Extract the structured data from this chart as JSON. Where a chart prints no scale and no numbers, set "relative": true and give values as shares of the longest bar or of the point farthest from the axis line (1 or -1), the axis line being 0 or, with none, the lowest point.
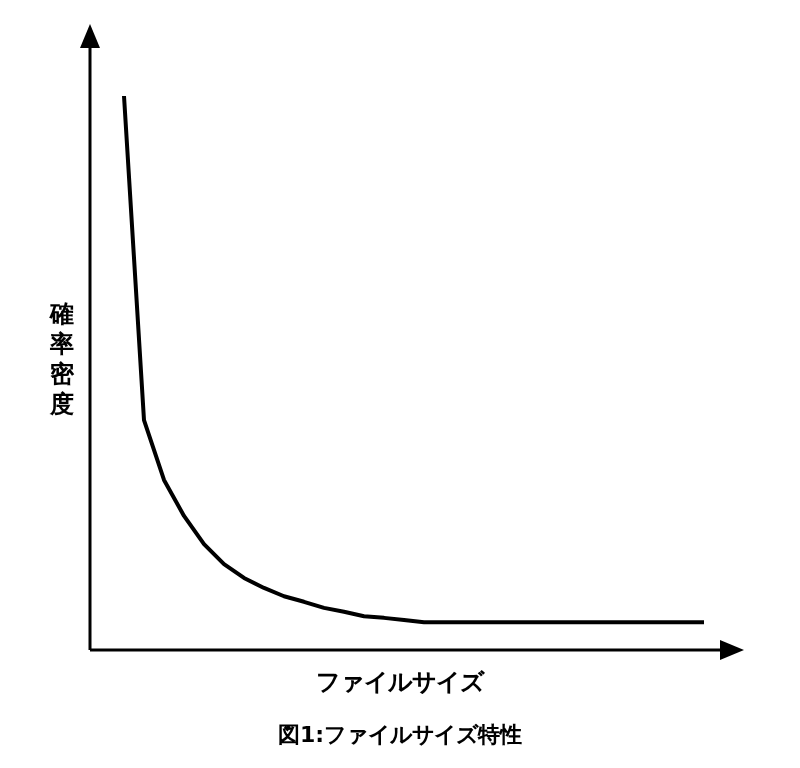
{
  "chart_data": {
    "type": "line",
    "relative": true,
    "xlabel": "ファイルサイズ",
    "ylabel": "確率密度",
    "annotations": [
      "図1:ファイルサイズ特性"
    ],
    "categories": [
      null,
      null,
      null,
      null,
      null,
      null,
      null,
      null,
      null,
      null,
      null,
      null,
      null,
      null,
      null,
      null,
      null,
      null,
      null,
      null,
      null,
      null,
      null,
      null,
      null,
      null,
      null,
      null,
      null,
      null
    ],
    "series": [
      {
        "color": "#000000",
        "values": [
          1,
          0.415,
          0.307,
          0.242,
          0.191,
          0.155,
          0.13,
          0.112,
          0.097,
          0.087,
          0.076,
          0.069,
          0.061,
          0.058,
          0.054,
          0.05,
          0.05,
          0.05,
          0.05,
          0.05,
          0.05,
          0.05,
          0.05,
          0.05,
          0.05,
          0.05,
          0.05,
          0.05,
          0.05,
          0.05
        ]
      }
    ],
    "legend": false
  }
}
